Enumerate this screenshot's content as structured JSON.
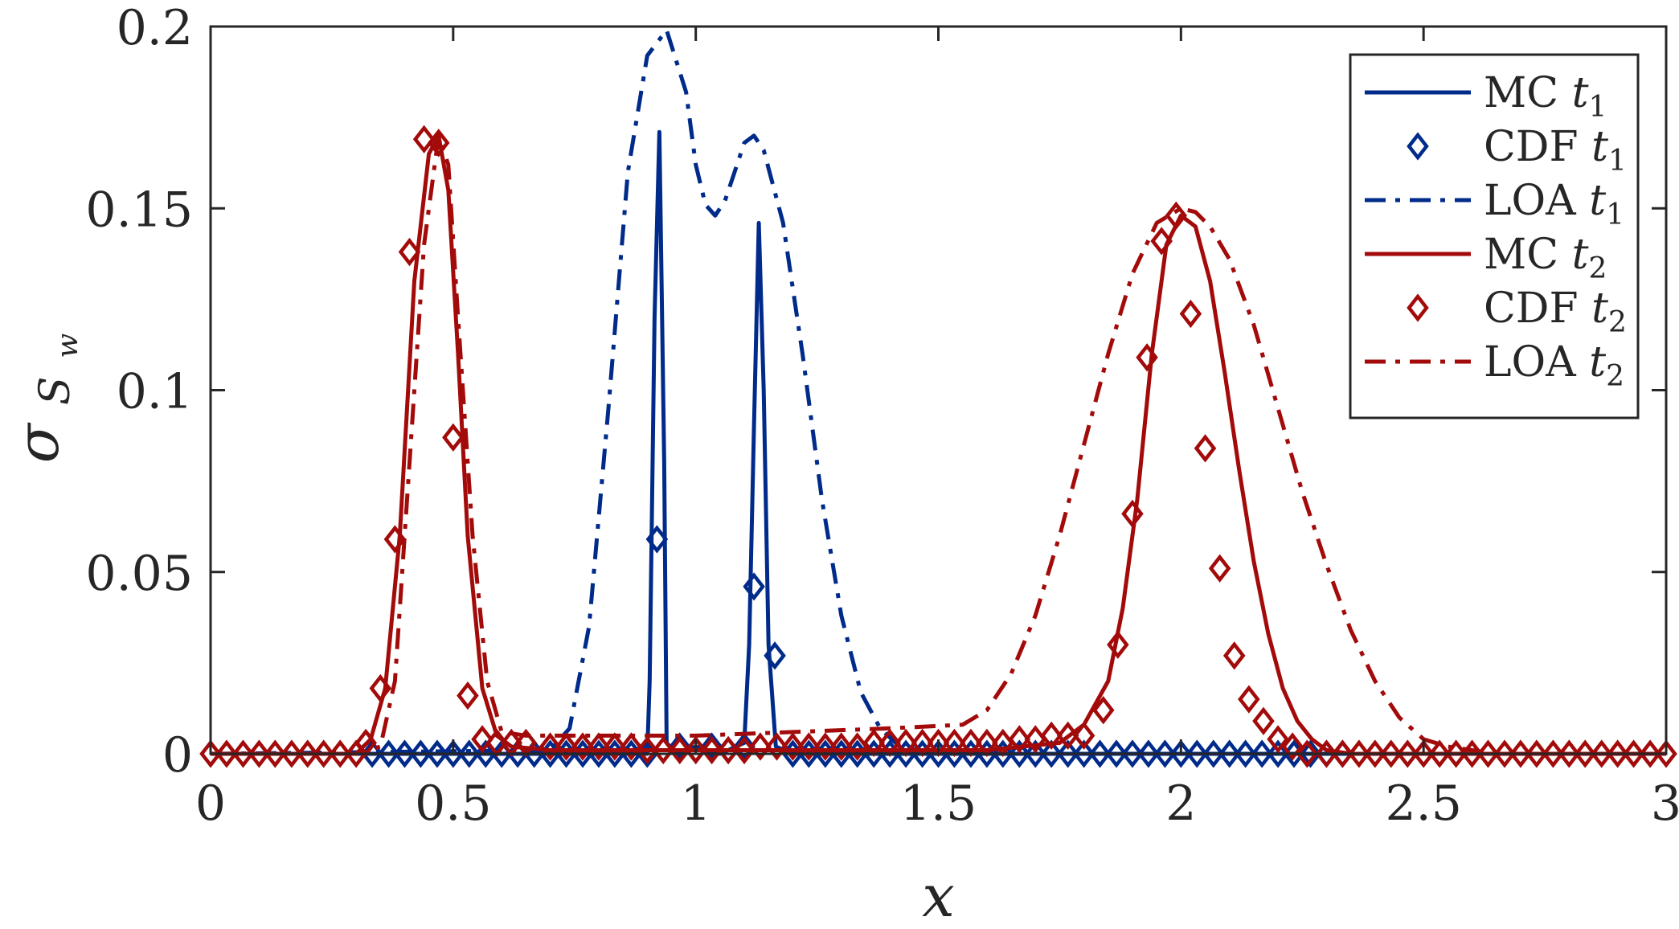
{
  "chart_data": {
    "type": "line",
    "xlabel": "x",
    "ylabel": "σ",
    "ylabel_sub": "S",
    "ylabel_subsub": "w",
    "xlim": [
      0,
      3
    ],
    "ylim": [
      0,
      0.2
    ],
    "xticks": [
      0,
      0.5,
      1,
      1.5,
      2,
      2.5,
      3
    ],
    "xtick_labels": [
      "0",
      "0.5",
      "1",
      "1.5",
      "2",
      "2.5",
      "3"
    ],
    "yticks": [
      0,
      0.05,
      0.1,
      0.15,
      0.2
    ],
    "ytick_labels": [
      "0",
      "0.05",
      "0.1",
      "0.15",
      "0.2"
    ],
    "grid": false,
    "legend_position": "top-right",
    "colors": {
      "blue": "#002b8a",
      "red": "#a30a0a",
      "axis": "#262626"
    },
    "series": [
      {
        "name": "MC t1",
        "label_main": "MC ",
        "label_var": "t",
        "label_sub": "1",
        "color": "#002b8a",
        "style": "solid",
        "marker": null,
        "x": [
          0,
          0.9,
          0.905,
          0.915,
          0.925,
          0.935,
          0.94,
          0.96,
          1.0,
          1.05,
          1.1,
          1.11,
          1.12,
          1.13,
          1.14,
          1.15,
          1.165,
          1.2,
          3
        ],
        "y": [
          0,
          0,
          0.02,
          0.12,
          0.171,
          0.08,
          0.003,
          0.0,
          0.002,
          0.0,
          0.003,
          0.03,
          0.09,
          0.146,
          0.1,
          0.03,
          0.002,
          0,
          0
        ]
      },
      {
        "name": "CDF t1",
        "label_main": "CDF ",
        "label_var": "t",
        "label_sub": "1",
        "color": "#002b8a",
        "style": "none",
        "marker": "diamond",
        "x": [
          0.333,
          0.367,
          0.4,
          0.433,
          0.467,
          0.5,
          0.533,
          0.567,
          0.6,
          0.633,
          0.667,
          0.7,
          0.733,
          0.767,
          0.8,
          0.833,
          0.867,
          0.9,
          0.92,
          0.967,
          1.0,
          1.033,
          1.067,
          1.1,
          1.12,
          1.163,
          1.2,
          1.233,
          1.267,
          1.3,
          1.333,
          1.367,
          1.4,
          1.433,
          1.467,
          1.5,
          1.533,
          1.567,
          1.6,
          1.633,
          1.667,
          1.7,
          1.733,
          1.767,
          1.8,
          1.833,
          1.867,
          1.9,
          1.933,
          1.967,
          2.0,
          2.033,
          2.067,
          2.1,
          2.133,
          2.167,
          2.2,
          2.233,
          2.267,
          2.3,
          2.333
        ],
        "y": [
          0,
          0,
          0,
          0,
          0,
          0,
          0,
          0,
          0,
          0,
          0,
          0,
          0,
          0,
          0,
          0,
          0,
          0,
          0.059,
          0.002,
          0.001,
          0.002,
          0.001,
          0.002,
          0.046,
          0.027,
          0,
          0,
          0,
          0,
          0,
          0,
          0,
          0,
          0,
          0,
          0,
          0,
          0,
          0,
          0,
          0,
          0,
          0,
          0,
          0,
          0,
          0,
          0,
          0,
          0,
          0,
          0,
          0,
          0,
          0,
          0,
          0,
          0,
          0,
          0
        ]
      },
      {
        "name": "LOA t1",
        "label_main": "LOA ",
        "label_var": "t",
        "label_sub": "1",
        "color": "#002b8a",
        "style": "dashdot",
        "marker": null,
        "x": [
          0,
          0.7,
          0.74,
          0.78,
          0.82,
          0.86,
          0.9,
          0.94,
          0.98,
          1.0,
          1.02,
          1.04,
          1.06,
          1.08,
          1.1,
          1.12,
          1.14,
          1.18,
          1.22,
          1.26,
          1.3,
          1.34,
          1.38,
          1.42,
          1.46,
          1.5,
          3
        ],
        "y": [
          0,
          0.001,
          0.007,
          0.035,
          0.095,
          0.16,
          0.192,
          0.199,
          0.182,
          0.162,
          0.151,
          0.148,
          0.152,
          0.16,
          0.168,
          0.17,
          0.166,
          0.146,
          0.11,
          0.07,
          0.038,
          0.017,
          0.007,
          0.002,
          0.001,
          0,
          0
        ]
      },
      {
        "name": "MC t2",
        "label_main": "MC ",
        "label_var": "t",
        "label_sub": "2",
        "color": "#a30a0a",
        "style": "solid",
        "marker": null,
        "x": [
          0,
          0.3,
          0.33,
          0.36,
          0.39,
          0.42,
          0.45,
          0.47,
          0.49,
          0.51,
          0.53,
          0.56,
          0.59,
          0.62,
          0.7,
          1.0,
          1.3,
          1.6,
          1.75,
          1.8,
          1.85,
          1.88,
          1.91,
          1.94,
          1.97,
          2.0,
          2.03,
          2.06,
          2.09,
          2.12,
          2.15,
          2.18,
          2.21,
          2.24,
          2.27,
          2.3,
          2.35,
          2.4,
          3
        ],
        "y": [
          0,
          0,
          0.004,
          0.018,
          0.06,
          0.13,
          0.165,
          0.17,
          0.155,
          0.11,
          0.06,
          0.018,
          0.005,
          0.002,
          0.001,
          0.001,
          0.001,
          0.001,
          0.003,
          0.008,
          0.02,
          0.04,
          0.07,
          0.11,
          0.14,
          0.148,
          0.145,
          0.13,
          0.105,
          0.078,
          0.053,
          0.033,
          0.018,
          0.009,
          0.004,
          0.001,
          0,
          0,
          0
        ]
      },
      {
        "name": "CDF t2",
        "label_main": "CDF ",
        "label_var": "t",
        "label_sub": "2",
        "color": "#a30a0a",
        "style": "none",
        "marker": "diamond",
        "x": [
          0.0,
          0.033,
          0.067,
          0.1,
          0.133,
          0.167,
          0.2,
          0.233,
          0.267,
          0.3,
          0.32,
          0.35,
          0.38,
          0.41,
          0.44,
          0.47,
          0.5,
          0.53,
          0.56,
          0.59,
          0.62,
          0.65,
          0.7,
          0.733,
          0.767,
          0.8,
          0.833,
          0.867,
          0.9,
          0.933,
          0.967,
          1.0,
          1.033,
          1.067,
          1.1,
          1.133,
          1.167,
          1.2,
          1.233,
          1.267,
          1.3,
          1.333,
          1.367,
          1.4,
          1.433,
          1.467,
          1.5,
          1.533,
          1.567,
          1.6,
          1.633,
          1.667,
          1.7,
          1.733,
          1.767,
          1.8,
          1.84,
          1.87,
          1.9,
          1.93,
          1.96,
          1.99,
          2.02,
          2.05,
          2.08,
          2.11,
          2.14,
          2.17,
          2.2,
          2.23,
          2.26,
          2.3,
          2.333,
          2.367,
          2.4,
          2.433,
          2.467,
          2.5,
          2.533,
          2.567,
          2.6,
          2.633,
          2.667,
          2.7,
          2.733,
          2.767,
          2.8,
          2.833,
          2.867,
          2.9,
          2.933,
          2.967,
          3.0
        ],
        "y": [
          0,
          0,
          0,
          0,
          0,
          0,
          0,
          0,
          0,
          0,
          0.003,
          0.018,
          0.059,
          0.138,
          0.169,
          0.168,
          0.087,
          0.016,
          0.004,
          0.003,
          0.003,
          0.003,
          0.002,
          0.002,
          0.002,
          0.002,
          0.002,
          0.002,
          0.001,
          0.001,
          0.001,
          0.001,
          0.001,
          0.001,
          0.001,
          0.002,
          0.002,
          0.002,
          0.002,
          0.002,
          0.002,
          0.002,
          0.003,
          0.003,
          0.003,
          0.003,
          0.003,
          0.003,
          0.003,
          0.003,
          0.003,
          0.004,
          0.004,
          0.005,
          0.005,
          0.005,
          0.012,
          0.03,
          0.066,
          0.109,
          0.141,
          0.148,
          0.121,
          0.084,
          0.051,
          0.027,
          0.015,
          0.009,
          0.004,
          0.002,
          0.0,
          0,
          0,
          0,
          0,
          0,
          0,
          0,
          0,
          0,
          0,
          0,
          0,
          0,
          0,
          0,
          0,
          0,
          0,
          0,
          0,
          0,
          0
        ]
      },
      {
        "name": "LOA t2",
        "label_main": "LOA ",
        "label_var": "t",
        "label_sub": "2",
        "color": "#a30a0a",
        "style": "dashdot",
        "marker": null,
        "x": [
          0,
          0.3,
          0.35,
          0.38,
          0.41,
          0.44,
          0.47,
          0.49,
          0.51,
          0.54,
          0.57,
          0.6,
          0.65,
          0.8,
          1.0,
          1.2,
          1.4,
          1.55,
          1.6,
          1.65,
          1.7,
          1.75,
          1.8,
          1.85,
          1.9,
          1.95,
          2.0,
          2.03,
          2.06,
          2.1,
          2.15,
          2.2,
          2.25,
          2.3,
          2.35,
          2.4,
          2.45,
          2.5,
          2.55,
          2.6,
          2.65,
          3
        ],
        "y": [
          0,
          0,
          0.002,
          0.02,
          0.08,
          0.14,
          0.17,
          0.162,
          0.12,
          0.06,
          0.02,
          0.006,
          0.005,
          0.005,
          0.005,
          0.006,
          0.007,
          0.008,
          0.012,
          0.022,
          0.038,
          0.06,
          0.085,
          0.11,
          0.132,
          0.146,
          0.15,
          0.149,
          0.145,
          0.136,
          0.118,
          0.095,
          0.072,
          0.052,
          0.034,
          0.02,
          0.01,
          0.004,
          0.002,
          0.001,
          0,
          0
        ]
      }
    ]
  }
}
